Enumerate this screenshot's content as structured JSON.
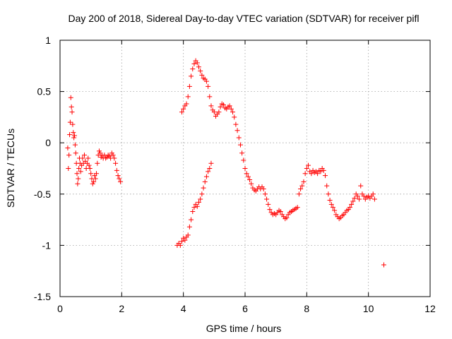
{
  "chart_data": {
    "type": "scatter",
    "title": "Day 200 of 2018, Sidereal Day-to-day VTEC variation (SDTVAR) for receiver pifl",
    "xlabel": "GPS time / hours",
    "ylabel": "SDTVAR / TECUs",
    "xlim": [
      0,
      12
    ],
    "ylim": [
      -1.5,
      1
    ],
    "xticks": [
      0,
      2,
      4,
      6,
      8,
      10,
      12
    ],
    "yticks": [
      -1.5,
      -1,
      -0.5,
      0,
      0.5,
      1
    ],
    "xtick_labels": [
      "0",
      "2",
      "4",
      "6",
      "8",
      "10",
      "12"
    ],
    "ytick_labels": [
      "-1.5",
      "-1",
      "-0.5",
      "0",
      "0.5",
      "1"
    ],
    "grid": true,
    "marker": "plus",
    "marker_color": "#ff0000",
    "series": [
      {
        "name": "SDTVAR",
        "points": [
          [
            0.25,
            -0.05
          ],
          [
            0.27,
            -0.25
          ],
          [
            0.29,
            -0.12
          ],
          [
            0.31,
            0.08
          ],
          [
            0.33,
            0.2
          ],
          [
            0.35,
            0.44
          ],
          [
            0.37,
            0.35
          ],
          [
            0.39,
            0.3
          ],
          [
            0.41,
            0.18
          ],
          [
            0.43,
            0.1
          ],
          [
            0.45,
            0.05
          ],
          [
            0.47,
            0.07
          ],
          [
            0.49,
            -0.02
          ],
          [
            0.51,
            -0.1
          ],
          [
            0.53,
            -0.2
          ],
          [
            0.55,
            -0.3
          ],
          [
            0.57,
            -0.4
          ],
          [
            0.59,
            -0.35
          ],
          [
            0.61,
            -0.25
          ],
          [
            0.63,
            -0.15
          ],
          [
            0.65,
            -0.2
          ],
          [
            0.67,
            -0.28
          ],
          [
            0.7,
            -0.22
          ],
          [
            0.73,
            -0.15
          ],
          [
            0.76,
            -0.2
          ],
          [
            0.79,
            -0.12
          ],
          [
            0.82,
            -0.18
          ],
          [
            0.85,
            -0.25
          ],
          [
            0.88,
            -0.2
          ],
          [
            0.91,
            -0.15
          ],
          [
            0.94,
            -0.22
          ],
          [
            0.97,
            -0.25
          ],
          [
            1.0,
            -0.3
          ],
          [
            1.03,
            -0.35
          ],
          [
            1.06,
            -0.4
          ],
          [
            1.09,
            -0.38
          ],
          [
            1.12,
            -0.32
          ],
          [
            1.15,
            -0.35
          ],
          [
            1.18,
            -0.3
          ],
          [
            1.21,
            -0.2
          ],
          [
            1.24,
            -0.12
          ],
          [
            1.27,
            -0.08
          ],
          [
            1.3,
            -0.1
          ],
          [
            1.33,
            -0.14
          ],
          [
            1.36,
            -0.12
          ],
          [
            1.4,
            -0.15
          ],
          [
            1.44,
            -0.12
          ],
          [
            1.48,
            -0.15
          ],
          [
            1.52,
            -0.14
          ],
          [
            1.56,
            -0.12
          ],
          [
            1.6,
            -0.13
          ],
          [
            1.64,
            -0.15
          ],
          [
            1.68,
            -0.1
          ],
          [
            1.72,
            -0.12
          ],
          [
            1.76,
            -0.15
          ],
          [
            1.8,
            -0.2
          ],
          [
            1.84,
            -0.27
          ],
          [
            1.88,
            -0.32
          ],
          [
            1.92,
            -0.35
          ],
          [
            1.96,
            -0.38
          ],
          [
            3.8,
            -1.0
          ],
          [
            3.85,
            -0.98
          ],
          [
            3.9,
            -1.0
          ],
          [
            3.95,
            -0.96
          ],
          [
            4.0,
            -0.93
          ],
          [
            4.05,
            -0.95
          ],
          [
            4.1,
            -0.92
          ],
          [
            4.15,
            -0.9
          ],
          [
            4.2,
            -0.82
          ],
          [
            4.25,
            -0.75
          ],
          [
            4.3,
            -0.67
          ],
          [
            4.35,
            -0.63
          ],
          [
            4.4,
            -0.6
          ],
          [
            4.45,
            -0.62
          ],
          [
            4.5,
            -0.58
          ],
          [
            4.55,
            -0.55
          ],
          [
            4.6,
            -0.5
          ],
          [
            4.65,
            -0.44
          ],
          [
            4.7,
            -0.38
          ],
          [
            4.75,
            -0.33
          ],
          [
            4.8,
            -0.28
          ],
          [
            4.85,
            -0.25
          ],
          [
            4.9,
            -0.2
          ],
          [
            3.95,
            0.3
          ],
          [
            4.0,
            0.33
          ],
          [
            4.05,
            0.36
          ],
          [
            4.1,
            0.38
          ],
          [
            4.15,
            0.45
          ],
          [
            4.2,
            0.55
          ],
          [
            4.25,
            0.65
          ],
          [
            4.3,
            0.72
          ],
          [
            4.35,
            0.77
          ],
          [
            4.4,
            0.8
          ],
          [
            4.45,
            0.78
          ],
          [
            4.5,
            0.74
          ],
          [
            4.55,
            0.7
          ],
          [
            4.6,
            0.66
          ],
          [
            4.65,
            0.63
          ],
          [
            4.7,
            0.62
          ],
          [
            4.75,
            0.6
          ],
          [
            4.8,
            0.55
          ],
          [
            4.85,
            0.45
          ],
          [
            4.9,
            0.36
          ],
          [
            4.95,
            0.32
          ],
          [
            5.0,
            0.3
          ],
          [
            5.05,
            0.26
          ],
          [
            5.1,
            0.28
          ],
          [
            5.15,
            0.3
          ],
          [
            5.2,
            0.35
          ],
          [
            5.25,
            0.38
          ],
          [
            5.3,
            0.37
          ],
          [
            5.35,
            0.34
          ],
          [
            5.4,
            0.33
          ],
          [
            5.45,
            0.35
          ],
          [
            5.5,
            0.36
          ],
          [
            5.55,
            0.33
          ],
          [
            5.6,
            0.3
          ],
          [
            5.65,
            0.25
          ],
          [
            5.7,
            0.18
          ],
          [
            5.75,
            0.12
          ],
          [
            5.8,
            0.05
          ],
          [
            5.85,
            -0.02
          ],
          [
            5.9,
            -0.1
          ],
          [
            5.95,
            -0.17
          ],
          [
            6.0,
            -0.25
          ],
          [
            6.05,
            -0.3
          ],
          [
            6.1,
            -0.33
          ],
          [
            6.15,
            -0.36
          ],
          [
            6.2,
            -0.4
          ],
          [
            6.25,
            -0.44
          ],
          [
            6.3,
            -0.46
          ],
          [
            6.35,
            -0.47
          ],
          [
            6.4,
            -0.45
          ],
          [
            6.45,
            -0.43
          ],
          [
            6.5,
            -0.45
          ],
          [
            6.55,
            -0.43
          ],
          [
            6.6,
            -0.45
          ],
          [
            6.65,
            -0.5
          ],
          [
            6.7,
            -0.55
          ],
          [
            6.75,
            -0.6
          ],
          [
            6.8,
            -0.65
          ],
          [
            6.85,
            -0.68
          ],
          [
            6.9,
            -0.7
          ],
          [
            6.95,
            -0.69
          ],
          [
            7.0,
            -0.7
          ],
          [
            7.05,
            -0.68
          ],
          [
            7.1,
            -0.66
          ],
          [
            7.15,
            -0.67
          ],
          [
            7.2,
            -0.7
          ],
          [
            7.25,
            -0.72
          ],
          [
            7.3,
            -0.74
          ],
          [
            7.35,
            -0.73
          ],
          [
            7.4,
            -0.7
          ],
          [
            7.45,
            -0.68
          ],
          [
            7.5,
            -0.67
          ],
          [
            7.55,
            -0.66
          ],
          [
            7.6,
            -0.65
          ],
          [
            7.65,
            -0.64
          ],
          [
            7.7,
            -0.63
          ],
          [
            7.75,
            -0.5
          ],
          [
            7.8,
            -0.45
          ],
          [
            7.85,
            -0.42
          ],
          [
            7.9,
            -0.38
          ],
          [
            7.95,
            -0.3
          ],
          [
            8.0,
            -0.25
          ],
          [
            8.05,
            -0.22
          ],
          [
            8.1,
            -0.28
          ],
          [
            8.15,
            -0.3
          ],
          [
            8.2,
            -0.27
          ],
          [
            8.25,
            -0.29
          ],
          [
            8.3,
            -0.28
          ],
          [
            8.35,
            -0.3
          ],
          [
            8.4,
            -0.27
          ],
          [
            8.45,
            -0.28
          ],
          [
            8.5,
            -0.25
          ],
          [
            8.55,
            -0.27
          ],
          [
            8.6,
            -0.32
          ],
          [
            8.65,
            -0.42
          ],
          [
            8.7,
            -0.5
          ],
          [
            8.75,
            -0.56
          ],
          [
            8.8,
            -0.6
          ],
          [
            8.85,
            -0.63
          ],
          [
            8.9,
            -0.66
          ],
          [
            8.95,
            -0.7
          ],
          [
            9.0,
            -0.72
          ],
          [
            9.05,
            -0.74
          ],
          [
            9.1,
            -0.73
          ],
          [
            9.15,
            -0.71
          ],
          [
            9.2,
            -0.7
          ],
          [
            9.25,
            -0.68
          ],
          [
            9.3,
            -0.66
          ],
          [
            9.35,
            -0.65
          ],
          [
            9.4,
            -0.63
          ],
          [
            9.45,
            -0.6
          ],
          [
            9.5,
            -0.57
          ],
          [
            9.55,
            -0.54
          ],
          [
            9.6,
            -0.5
          ],
          [
            9.65,
            -0.52
          ],
          [
            9.7,
            -0.55
          ],
          [
            9.75,
            -0.42
          ],
          [
            9.8,
            -0.5
          ],
          [
            9.85,
            -0.52
          ],
          [
            9.9,
            -0.55
          ],
          [
            9.95,
            -0.53
          ],
          [
            10.0,
            -0.52
          ],
          [
            10.05,
            -0.54
          ],
          [
            10.1,
            -0.52
          ],
          [
            10.15,
            -0.5
          ],
          [
            10.2,
            -0.55
          ],
          [
            10.5,
            -1.19
          ]
        ]
      }
    ]
  }
}
